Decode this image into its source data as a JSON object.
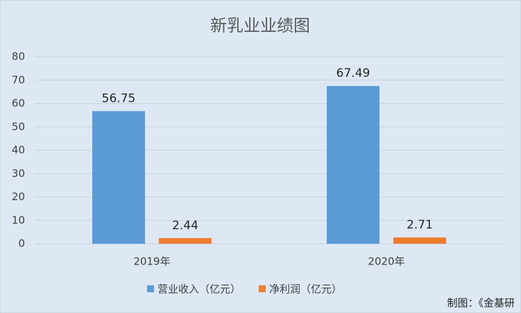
{
  "chart_data": {
    "type": "bar",
    "title": "新乳业业绩图",
    "categories": [
      "2019年",
      "2020年"
    ],
    "series": [
      {
        "name": "营业收入（亿元）",
        "color": "#5b9bd5",
        "values": [
          56.75,
          67.49
        ]
      },
      {
        "name": "净利润（亿元）",
        "color": "#ed7d31",
        "values": [
          2.44,
          2.71
        ]
      }
    ],
    "ylim": [
      0,
      80
    ],
    "yticks": [
      0,
      10,
      20,
      30,
      40,
      50,
      60,
      70,
      80
    ],
    "grid": true,
    "legend": "bottom",
    "data_labels": true
  },
  "footer": "制图：《金基研"
}
